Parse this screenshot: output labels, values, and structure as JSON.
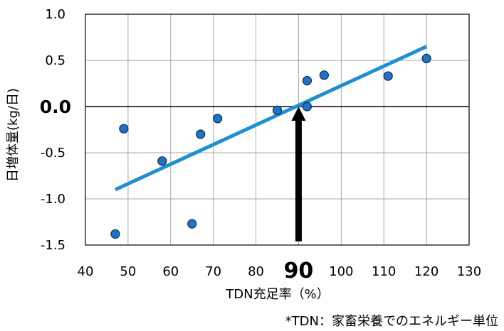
{
  "chart_data": {
    "type": "scatter",
    "xlabel": "TDN充足率（%）",
    "ylabel": "日増体量(kg/日)",
    "xlim": [
      40,
      130
    ],
    "ylim": [
      -1.5,
      1.0
    ],
    "x_ticks": [
      "40",
      "50",
      "60",
      "70",
      "80",
      "90",
      "100",
      "110",
      "120",
      "130"
    ],
    "y_ticks": [
      "1.0",
      "0.5",
      "0.0",
      "-0.5",
      "-1.0",
      "-1.5"
    ],
    "emphasized_x_tick": "90",
    "emphasized_y_tick": "0.0",
    "grid": true,
    "points": [
      {
        "x": 47,
        "y": -1.38
      },
      {
        "x": 49,
        "y": -0.24
      },
      {
        "x": 58,
        "y": -0.59
      },
      {
        "x": 65,
        "y": -1.27
      },
      {
        "x": 67,
        "y": -0.3
      },
      {
        "x": 71,
        "y": -0.13
      },
      {
        "x": 85,
        "y": -0.04
      },
      {
        "x": 92,
        "y": 0.28
      },
      {
        "x": 92,
        "y": 0.0
      },
      {
        "x": 96,
        "y": 0.34
      },
      {
        "x": 111,
        "y": 0.33
      },
      {
        "x": 120,
        "y": 0.52
      }
    ],
    "trendline": {
      "x": [
        47,
        120
      ],
      "y": [
        -0.9,
        0.65
      ]
    },
    "arrow": {
      "x": 90,
      "y_from": -1.46,
      "y_to": 0.0
    },
    "zero_line_y": 0.0,
    "colors": {
      "points": "#1f72c4",
      "trendline": "#1f8fd2",
      "arrow": "#000000",
      "grid": "#a6a6a6"
    }
  },
  "footnote": "*TDN：家畜栄養でのエネルギー単位"
}
